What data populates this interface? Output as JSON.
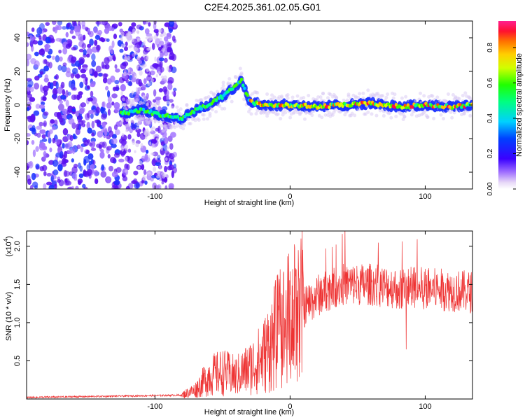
{
  "title": "C2E4.2025.361.02.05.G01",
  "chart_data": [
    {
      "type": "heatmap",
      "xlabel": "Height of straight line (km)",
      "ylabel": "Frequency (Hz)",
      "xlim": [
        -195,
        135
      ],
      "ylim": [
        -50,
        50
      ],
      "xticks": [
        "-100",
        "0",
        "100"
      ],
      "yticks": [
        "-40",
        "-20",
        "0",
        "20",
        "40"
      ],
      "colorbar": {
        "label": "Normalized spectral amplitude",
        "range": [
          0,
          0.95
        ],
        "ticks": [
          "0.00",
          "0.2",
          "0.4",
          "0.6",
          "0.8"
        ]
      },
      "ridge": {
        "x": [
          -125,
          -110,
          -95,
          -80,
          -70,
          -60,
          -50,
          -42,
          -36,
          -30,
          -20,
          0,
          20,
          40,
          60,
          80,
          100,
          120,
          135
        ],
        "y": [
          -5,
          -3,
          -6,
          -8,
          -3,
          0,
          5,
          10,
          15,
          2,
          0,
          0,
          -1,
          0,
          1,
          -1,
          0,
          -1,
          0
        ]
      }
    },
    {
      "type": "line",
      "xlabel": "Height of straight line (km)",
      "ylabel": "SNR (10 * v/v)",
      "yscale_label": "(x10",
      "yscale_exp": "4",
      "xlim": [
        -195,
        135
      ],
      "ylim": [
        0,
        2.2
      ],
      "xticks": [
        "-100",
        "0",
        "100"
      ],
      "yticks": [
        "0.5",
        "1.0",
        "1.5",
        "2.0"
      ],
      "color": "#ee3333",
      "envelope": {
        "x": [
          -195,
          -80,
          -70,
          -60,
          -50,
          -40,
          -30,
          -20,
          -10,
          0,
          10,
          20,
          30,
          40,
          60,
          80,
          100,
          120,
          135
        ],
        "y": [
          0.02,
          0.05,
          0.12,
          0.3,
          0.35,
          0.3,
          0.4,
          0.55,
          0.85,
          1.05,
          1.2,
          1.35,
          1.45,
          1.5,
          1.5,
          1.45,
          1.45,
          1.42,
          1.4
        ]
      }
    }
  ]
}
